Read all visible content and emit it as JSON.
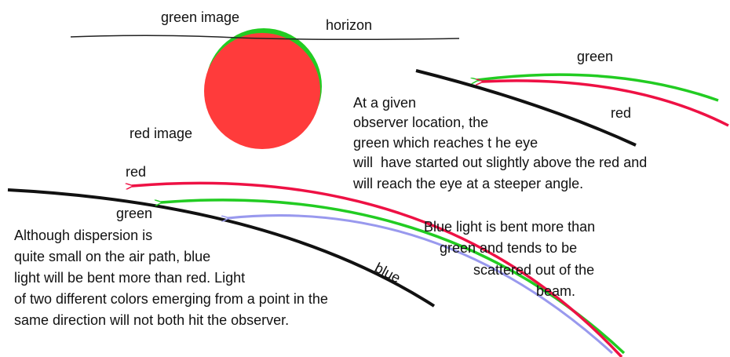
{
  "sun_diagram": {
    "green_label": "green image",
    "horizon_label": "horizon",
    "red_label": "red image"
  },
  "observer_diagram": {
    "green_label": "green",
    "red_label": "red",
    "text": [
      "At a given",
      "observer location, the",
      "green which reaches t he eye",
      "will  have started out slightly above the red and",
      "will reach the eye at a steeper angle."
    ]
  },
  "dispersion_diagram": {
    "red_label": "red",
    "green_label": "green",
    "blue_label": "blue",
    "text": [
      "Although dispersion is",
      "quite small on the air path, blue",
      "light will be bent more than red. Light",
      "of two different colors emerging from a point in the",
      "same direction will not both hit the observer."
    ],
    "blue_text": [
      "Blue light is bent more than",
      "green and tends to be",
      "scattered out of the",
      "beam."
    ]
  }
}
